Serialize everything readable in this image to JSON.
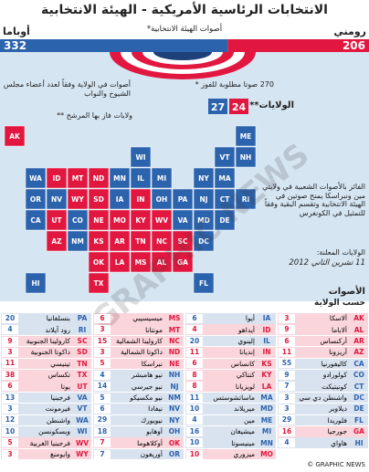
{
  "header": {
    "title": "الانتخابات الرئاسية الأمريكية - الهيئة الانتخابية",
    "subtitle": "أصوات الهيئة الانتخابية*"
  },
  "candidates": [
    {
      "name": "أوباما",
      "votes": 332,
      "states": 27,
      "color": "#2c63ad"
    },
    {
      "name": "رومني",
      "votes": 206,
      "states": 24,
      "color": "#e2173f"
    }
  ],
  "notes": {
    "needed": "270 صوتا مطلوبة للفوز *",
    "state_votes": "أصوات في الولاية وفقاً لعدد أعضاء مجلس الشيوخ والنواب",
    "states_won": "ولايات فاز بها المرشح **",
    "states_label": "الولايات**",
    "split": "الفائز بالأصوات الشعبية في ولايتي مين ونبراسكا يمنح صوتين في الهيئة الانتخابية وتقسم البقية وفقاً للتمثيل في الكونغرس",
    "announced": "الولايات المعلنة:",
    "date": "11 تشرين الثاني 2012"
  },
  "table": {
    "title": "الأصوات",
    "subtitle": "حسب الولاية",
    "states": [
      {
        "abbr": "AK",
        "name": "ألاسكا",
        "votes": 3,
        "winner": 1
      },
      {
        "abbr": "AL",
        "name": "ألاباما",
        "votes": 9,
        "winner": 1
      },
      {
        "abbr": "AR",
        "name": "أركنساس",
        "votes": 6,
        "winner": 1
      },
      {
        "abbr": "AZ",
        "name": "أريزونا",
        "votes": 11,
        "winner": 1
      },
      {
        "abbr": "CA",
        "name": "كاليفورنيا",
        "votes": 55,
        "winner": 0
      },
      {
        "abbr": "CO",
        "name": "كولورادو",
        "votes": 9,
        "winner": 0
      },
      {
        "abbr": "CT",
        "name": "كونيتيكت",
        "votes": 7,
        "winner": 0
      },
      {
        "abbr": "DC",
        "name": "واشنطن دي سي",
        "votes": 3,
        "winner": 0
      },
      {
        "abbr": "DE",
        "name": "ديلاوير",
        "votes": 3,
        "winner": 0
      },
      {
        "abbr": "FL",
        "name": "فلوريدا",
        "votes": 29,
        "winner": 0
      },
      {
        "abbr": "GA",
        "name": "جورجيا",
        "votes": 16,
        "winner": 1
      },
      {
        "abbr": "HI",
        "name": "هاواي",
        "votes": 4,
        "winner": 0
      },
      {
        "abbr": "IA",
        "name": "أيوا",
        "votes": 6,
        "winner": 0
      },
      {
        "abbr": "ID",
        "name": "أيداهو",
        "votes": 4,
        "winner": 1
      },
      {
        "abbr": "IL",
        "name": "إلينوي",
        "votes": 20,
        "winner": 0
      },
      {
        "abbr": "IN",
        "name": "إنديانا",
        "votes": 11,
        "winner": 1
      },
      {
        "abbr": "KS",
        "name": "كانساس",
        "votes": 6,
        "winner": 1
      },
      {
        "abbr": "KY",
        "name": "كنتاكي",
        "votes": 8,
        "winner": 1
      },
      {
        "abbr": "LA",
        "name": "لويزيانا",
        "votes": 8,
        "winner": 1
      },
      {
        "abbr": "MA",
        "name": "ماساتشوستس",
        "votes": 11,
        "winner": 0
      },
      {
        "abbr": "MD",
        "name": "ميريلاند",
        "votes": 10,
        "winner": 0
      },
      {
        "abbr": "ME",
        "name": "مين",
        "votes": 4,
        "winner": 0
      },
      {
        "abbr": "MI",
        "name": "ميشيغان",
        "votes": 16,
        "winner": 0
      },
      {
        "abbr": "MN",
        "name": "مينيسوتا",
        "votes": 10,
        "winner": 0
      },
      {
        "abbr": "MO",
        "name": "ميزوري",
        "votes": 10,
        "winner": 1
      },
      {
        "abbr": "MS",
        "name": "ميسيسيبي",
        "votes": 6,
        "winner": 1
      },
      {
        "abbr": "MT",
        "name": "مونتانا",
        "votes": 3,
        "winner": 1
      },
      {
        "abbr": "NC",
        "name": "كارولينا الشمالية",
        "votes": 15,
        "winner": 1
      },
      {
        "abbr": "ND",
        "name": "داكوتا الشمالية",
        "votes": 3,
        "winner": 1
      },
      {
        "abbr": "NE",
        "name": "نبراسكا",
        "votes": 5,
        "winner": 1
      },
      {
        "abbr": "NH",
        "name": "نيو هامبشر",
        "votes": 4,
        "winner": 0
      },
      {
        "abbr": "NJ",
        "name": "نيو جيرسي",
        "votes": 14,
        "winner": 0
      },
      {
        "abbr": "NM",
        "name": "نيو مكسيكو",
        "votes": 5,
        "winner": 0
      },
      {
        "abbr": "NV",
        "name": "نيفادا",
        "votes": 6,
        "winner": 0
      },
      {
        "abbr": "NY",
        "name": "نيويورك",
        "votes": 29,
        "winner": 0
      },
      {
        "abbr": "OH",
        "name": "أوهايو",
        "votes": 18,
        "winner": 0
      },
      {
        "abbr": "OK",
        "name": "أوكلاهوما",
        "votes": 7,
        "winner": 1
      },
      {
        "abbr": "OR",
        "name": "أوريغون",
        "votes": 7,
        "winner": 0
      },
      {
        "abbr": "PA",
        "name": "بنسلفانيا",
        "votes": 20,
        "winner": 0
      },
      {
        "abbr": "RI",
        "name": "رود آيلاند",
        "votes": 4,
        "winner": 0
      },
      {
        "abbr": "SC",
        "name": "كارولينا الجنوبية",
        "votes": 9,
        "winner": 1
      },
      {
        "abbr": "SD",
        "name": "داكوتا الجنوبية",
        "votes": 3,
        "winner": 1
      },
      {
        "abbr": "TN",
        "name": "تينيسي",
        "votes": 11,
        "winner": 1
      },
      {
        "abbr": "TX",
        "name": "تكساس",
        "votes": 38,
        "winner": 1
      },
      {
        "abbr": "UT",
        "name": "يوتا",
        "votes": 6,
        "winner": 1
      },
      {
        "abbr": "VA",
        "name": "فرجينيا",
        "votes": 13,
        "winner": 0
      },
      {
        "abbr": "VT",
        "name": "فيرمونت",
        "votes": 3,
        "winner": 0
      },
      {
        "abbr": "WA",
        "name": "واشنطن",
        "votes": 12,
        "winner": 0
      },
      {
        "abbr": "WI",
        "name": "ويسكونسن",
        "votes": 10,
        "winner": 0
      },
      {
        "abbr": "WV",
        "name": "فرجينيا الغربية",
        "votes": 5,
        "winner": 1
      },
      {
        "abbr": "WY",
        "name": "وايومنغ",
        "votes": 3,
        "winner": 1
      }
    ]
  },
  "watermark": "GRAPHIC NEWS",
  "footer": "© GRAPHIC NEWS"
}
